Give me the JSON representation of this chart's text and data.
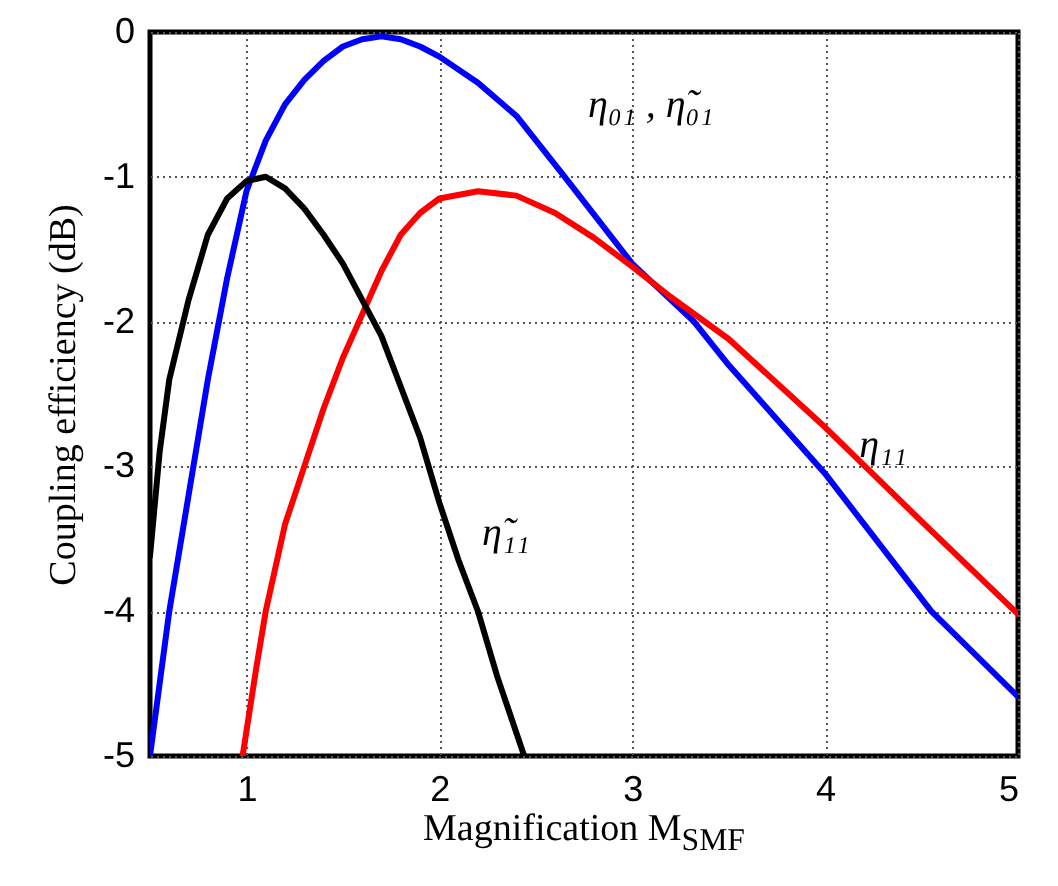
{
  "chart_data": {
    "type": "line",
    "xlabel": "Magnification M$_{SMF}$",
    "ylabel": "Coupling efficiency (dB)",
    "xlim": [
      0.5,
      5
    ],
    "ylim": [
      -5,
      0
    ],
    "xticks": [
      1,
      2,
      3,
      4,
      5
    ],
    "yticks": [
      -5,
      -4,
      -3,
      -2,
      -1,
      0
    ],
    "grid": true,
    "line_style": "solid",
    "marker": "none",
    "series": [
      {
        "name": "η₀₁ , η̃₀₁",
        "color": "#0000ff",
        "x": [
          0.5,
          0.6,
          0.7,
          0.75,
          0.8,
          0.9,
          1.0,
          1.1,
          1.2,
          1.3,
          1.4,
          1.5,
          1.6,
          1.7,
          1.8,
          1.9,
          2.0,
          2.2,
          2.4,
          2.65,
          3.0,
          3.32,
          3.5,
          4.0,
          4.55,
          5
        ],
        "values": [
          -5,
          -4,
          -3.2,
          -2.8,
          -2.4,
          -1.7,
          -1.1,
          -0.75,
          -0.5,
          -0.33,
          -0.2,
          -0.1,
          -0.05,
          -0.03,
          -0.05,
          -0.1,
          -0.17,
          -0.35,
          -0.58,
          -1.0,
          -1.6,
          -2.0,
          -2.3,
          -3.05,
          -4.0,
          -4.59
        ]
      },
      {
        "name": "η₁₁",
        "color": "#ff0000",
        "x": [
          0.98,
          1.05,
          1.1,
          1.2,
          1.3,
          1.4,
          1.5,
          1.6,
          1.7,
          1.8,
          1.9,
          2.0,
          2.2,
          2.4,
          2.6,
          2.8,
          3.0,
          3.2,
          3.5,
          4.0,
          4.5,
          5
        ],
        "values": [
          -5,
          -4.4,
          -4.0,
          -3.4,
          -3.0,
          -2.6,
          -2.25,
          -1.95,
          -1.65,
          -1.4,
          -1.25,
          -1.15,
          -1.1,
          -1.13,
          -1.25,
          -1.42,
          -1.62,
          -1.83,
          -2.12,
          -2.73,
          -3.38,
          -4.02
        ]
      },
      {
        "name": "η̃₁₁",
        "color": "#000000",
        "x": [
          0.5,
          0.55,
          0.6,
          0.7,
          0.8,
          0.9,
          1.0,
          1.1,
          1.2,
          1.3,
          1.4,
          1.5,
          1.6,
          1.7,
          1.8,
          1.9,
          2.0,
          2.1,
          2.2,
          2.3,
          2.44
        ],
        "values": [
          -3.62,
          -2.9,
          -2.4,
          -1.85,
          -1.4,
          -1.15,
          -1.03,
          -1.0,
          -1.08,
          -1.22,
          -1.4,
          -1.6,
          -1.85,
          -2.1,
          -2.45,
          -2.8,
          -3.25,
          -3.65,
          -4.0,
          -4.45,
          -5
        ]
      }
    ]
  }
}
